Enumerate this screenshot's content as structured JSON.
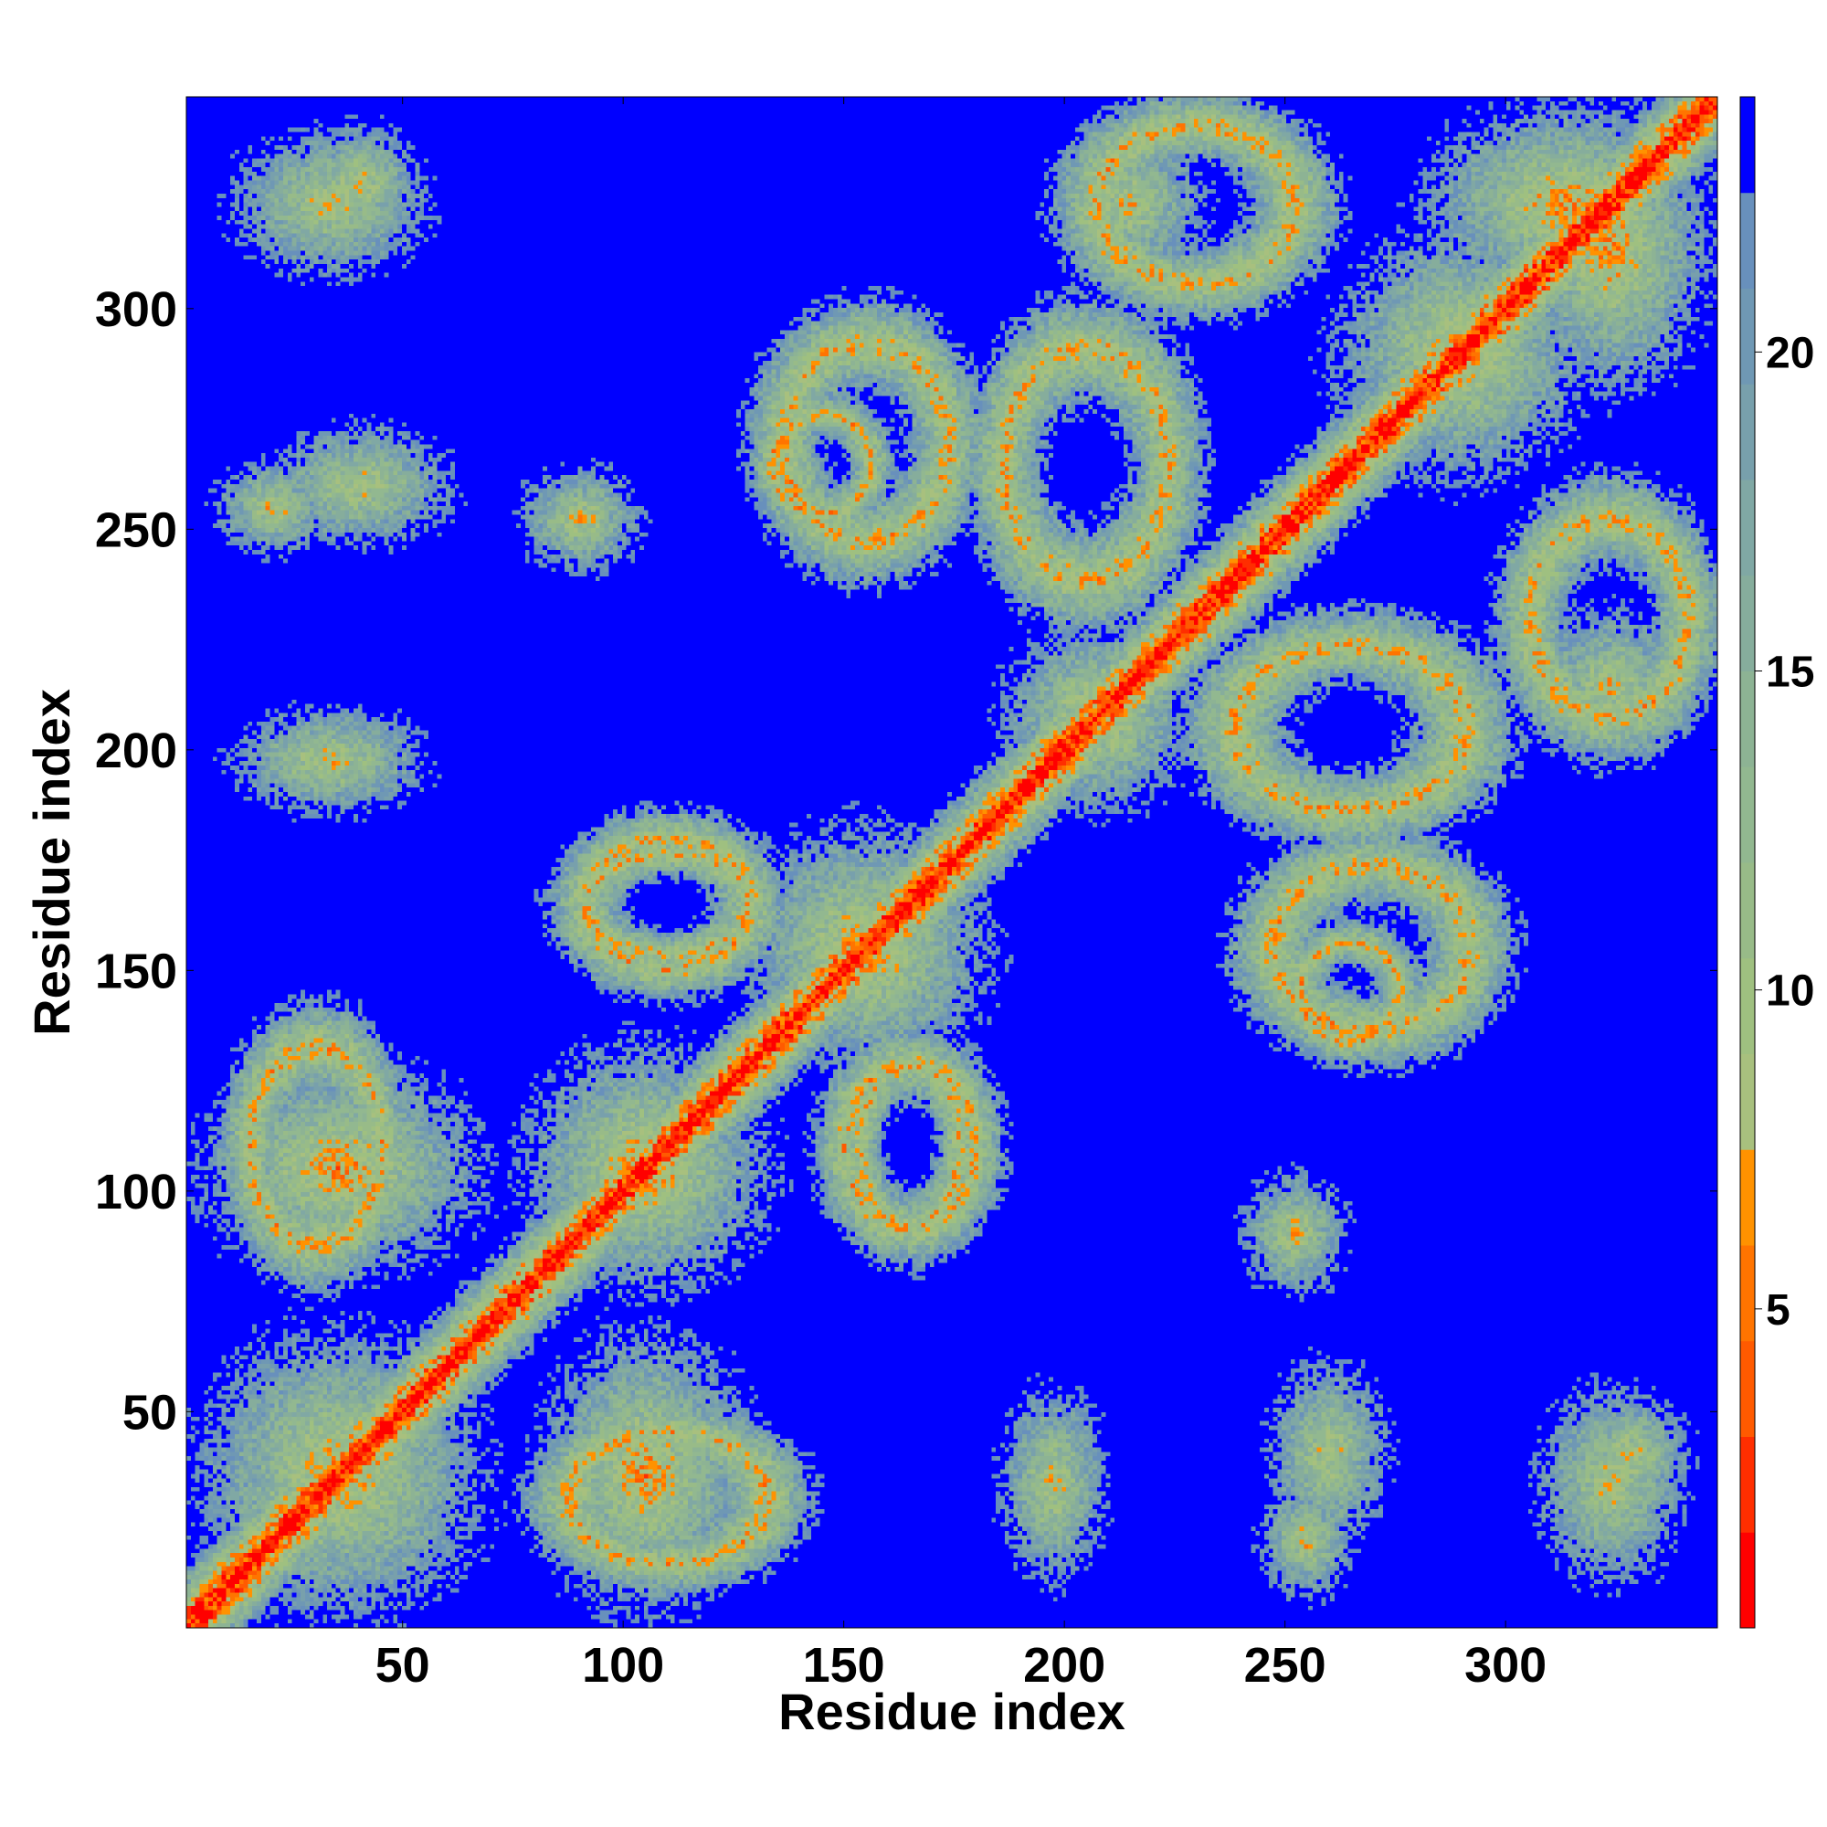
{
  "chart_data": {
    "type": "heatmap",
    "title": "",
    "xlabel": "Residue index",
    "ylabel": "Residue index",
    "n_residues": 348,
    "xlim": [
      1,
      348
    ],
    "ylim": [
      1,
      348
    ],
    "x_ticks": [
      50,
      100,
      150,
      200,
      250,
      300
    ],
    "x_tick_labels": [
      "50",
      "100",
      "150",
      "200",
      "250",
      "300"
    ],
    "y_ticks": [
      50,
      100,
      150,
      200,
      250,
      300
    ],
    "y_tick_labels": [
      "50",
      "100",
      "150",
      "200",
      "250",
      "300"
    ],
    "symmetric": true,
    "grid": false,
    "colorbar": {
      "position": "right",
      "range": [
        0,
        24
      ],
      "ticks": [
        5,
        10,
        15,
        20
      ],
      "tick_labels": [
        "5",
        "10",
        "15",
        "20"
      ],
      "bands": [
        {
          "from": 0.0,
          "to": 1.5,
          "color": "#ff0000"
        },
        {
          "from": 1.5,
          "to": 3.0,
          "color": "#ff2e00"
        },
        {
          "from": 3.0,
          "to": 4.5,
          "color": "#ff5a00"
        },
        {
          "from": 4.5,
          "to": 6.0,
          "color": "#ff7400"
        },
        {
          "from": 6.0,
          "to": 7.5,
          "color": "#ff9200"
        },
        {
          "from": 7.5,
          "to": 9.0,
          "color": "#a8c07e"
        },
        {
          "from": 9.0,
          "to": 10.5,
          "color": "#9fc080"
        },
        {
          "from": 10.5,
          "to": 12.0,
          "color": "#98bb88"
        },
        {
          "from": 12.0,
          "to": 13.5,
          "color": "#92b890"
        },
        {
          "from": 13.5,
          "to": 15.0,
          "color": "#8db394"
        },
        {
          "from": 15.0,
          "to": 16.5,
          "color": "#86ad9c"
        },
        {
          "from": 16.5,
          "to": 18.0,
          "color": "#80a8a4"
        },
        {
          "from": 18.0,
          "to": 19.5,
          "color": "#78a0ac"
        },
        {
          "from": 19.5,
          "to": 21.0,
          "color": "#6f98b4"
        },
        {
          "from": 21.0,
          "to": 22.5,
          "color": "#6890bc"
        },
        {
          "from": 22.5,
          "to": 24.0,
          "color": "#0000ff"
        }
      ]
    },
    "colors": {
      "background": "#0000ff",
      "contact": "#ff0000",
      "near": "#ff8000",
      "mid": "#9fc080",
      "far": "#7aa0b0"
    },
    "contact_regions": [
      {
        "i": [
          1,
          348
        ],
        "j": [
          1,
          348
        ],
        "kind": "diagonal"
      },
      {
        "i": [
          1,
          70
        ],
        "j": [
          1,
          70
        ],
        "kind": "block"
      },
      {
        "i": [
          1,
          70
        ],
        "j": [
          80,
          130
        ],
        "kind": "block"
      },
      {
        "i": [
          75,
          135
        ],
        "j": [
          75,
          135
        ],
        "kind": "block"
      },
      {
        "i": [
          80,
          140
        ],
        "j": [
          10,
          50
        ],
        "kind": "ring"
      },
      {
        "i": [
          85,
          135
        ],
        "j": [
          150,
          180
        ],
        "kind": "ring"
      },
      {
        "i": [
          125,
          185
        ],
        "j": [
          125,
          185
        ],
        "kind": "block"
      },
      {
        "i": [
          145,
          185
        ],
        "j": [
          85,
          135
        ],
        "kind": "ring"
      },
      {
        "i": [
          185,
          230
        ],
        "j": [
          185,
          230
        ],
        "kind": "block"
      },
      {
        "i": [
          230,
          300
        ],
        "j": [
          180,
          230
        ],
        "kind": "ring"
      },
      {
        "i": [
          240,
          300
        ],
        "j": [
          130,
          180
        ],
        "kind": "ring"
      },
      {
        "i": [
          260,
          320
        ],
        "j": [
          260,
          320
        ],
        "kind": "block"
      },
      {
        "i": [
          300,
          348
        ],
        "j": [
          200,
          260
        ],
        "kind": "ring"
      },
      {
        "i": [
          280,
          348
        ],
        "j": [
          300,
          348
        ],
        "kind": "block"
      },
      {
        "i": [
          240,
          270
        ],
        "j": [
          1,
          40
        ],
        "kind": "patch"
      },
      {
        "i": [
          180,
          215
        ],
        "j": [
          1,
          65
        ],
        "kind": "patch"
      },
      {
        "i": [
          300,
          348
        ],
        "j": [
          1,
          65
        ],
        "kind": "patch"
      },
      {
        "i": [
          70,
          110
        ],
        "j": [
          235,
          270
        ],
        "kind": "patch"
      },
      {
        "i": [
          10,
          70
        ],
        "j": [
          240,
          280
        ],
        "kind": "patch"
      },
      {
        "i": [
          130,
          160
        ],
        "j": [
          250,
          280
        ],
        "kind": "ring"
      },
      {
        "i": [
          190,
          240
        ],
        "j": [
          300,
          348
        ],
        "kind": "patch"
      },
      {
        "i": [
          20,
          60
        ],
        "j": [
          310,
          348
        ],
        "kind": "patch"
      }
    ]
  }
}
